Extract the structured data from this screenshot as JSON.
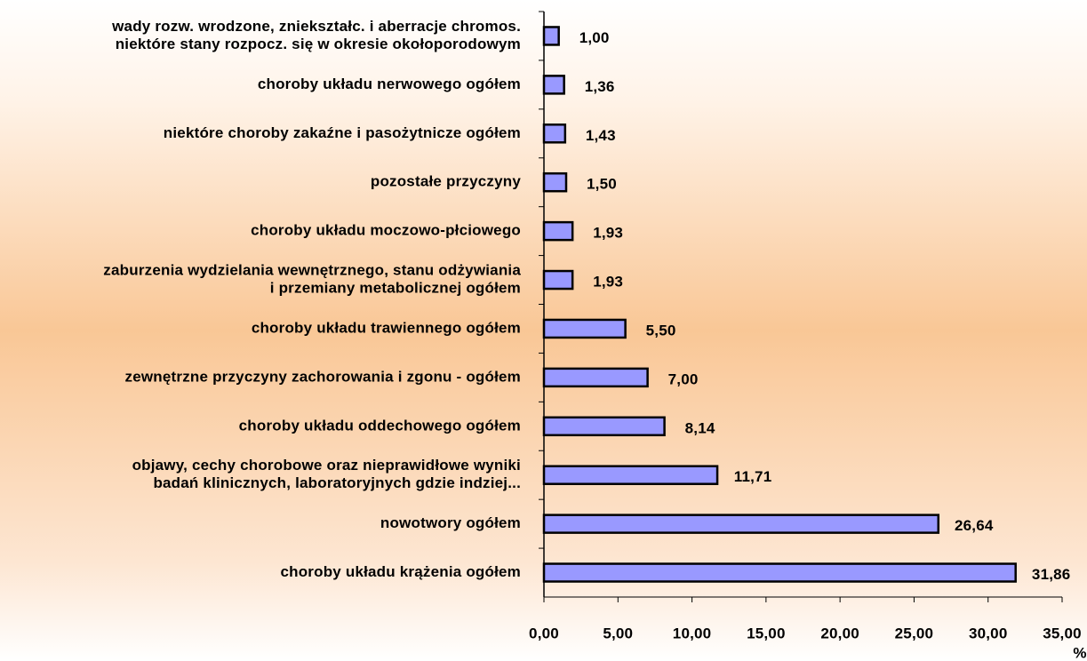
{
  "chart_data": {
    "type": "bar",
    "orientation": "horizontal",
    "categories": [
      [
        "wady rozw. wrodzone, zniekształc. i aberracje chromos.",
        "niektóre stany rozpocz. się w okresie okołoporodowym"
      ],
      [
        "choroby układu nerwowego ogółem"
      ],
      [
        "niektóre choroby zakaźne i pasożytnicze ogółem"
      ],
      [
        "pozostałe przyczyny"
      ],
      [
        "choroby układu moczowo-płciowego"
      ],
      [
        "zaburzenia wydzielania wewnętrznego, stanu odżywiania",
        "i przemiany metabolicznej ogółem"
      ],
      [
        "choroby układu trawiennego ogółem"
      ],
      [
        "zewnętrzne przyczyny zachorowania i zgonu - ogółem"
      ],
      [
        "choroby układu oddechowego ogółem"
      ],
      [
        "objawy, cechy chorobowe oraz nieprawidłowe wyniki",
        "badań klinicznych, laboratoryjnych gdzie indziej..."
      ],
      [
        "nowotwory ogółem"
      ],
      [
        "choroby układu krążenia ogółem"
      ]
    ],
    "values": [
      1.0,
      1.36,
      1.43,
      1.5,
      1.93,
      1.93,
      5.5,
      7.0,
      8.14,
      11.71,
      26.64,
      31.86
    ],
    "value_labels": [
      "1,00",
      "1,36",
      "1,43",
      "1,50",
      "1,93",
      "1,93",
      "5,50",
      "7,00",
      "8,14",
      "11,71",
      "26,64",
      "31,86"
    ],
    "color": "#9999ff",
    "xlim": [
      0,
      35
    ],
    "xticks": [
      {
        "value": 0,
        "label": "0,00"
      },
      {
        "value": 5,
        "label": "5,00"
      },
      {
        "value": 10,
        "label": "10,00"
      },
      {
        "value": 15,
        "label": "15,00"
      },
      {
        "value": 20,
        "label": "20,00"
      },
      {
        "value": 25,
        "label": "25,00"
      },
      {
        "value": 30,
        "label": "30,00"
      },
      {
        "value": 35,
        "label": "35,00"
      }
    ],
    "xlabel": "%"
  }
}
